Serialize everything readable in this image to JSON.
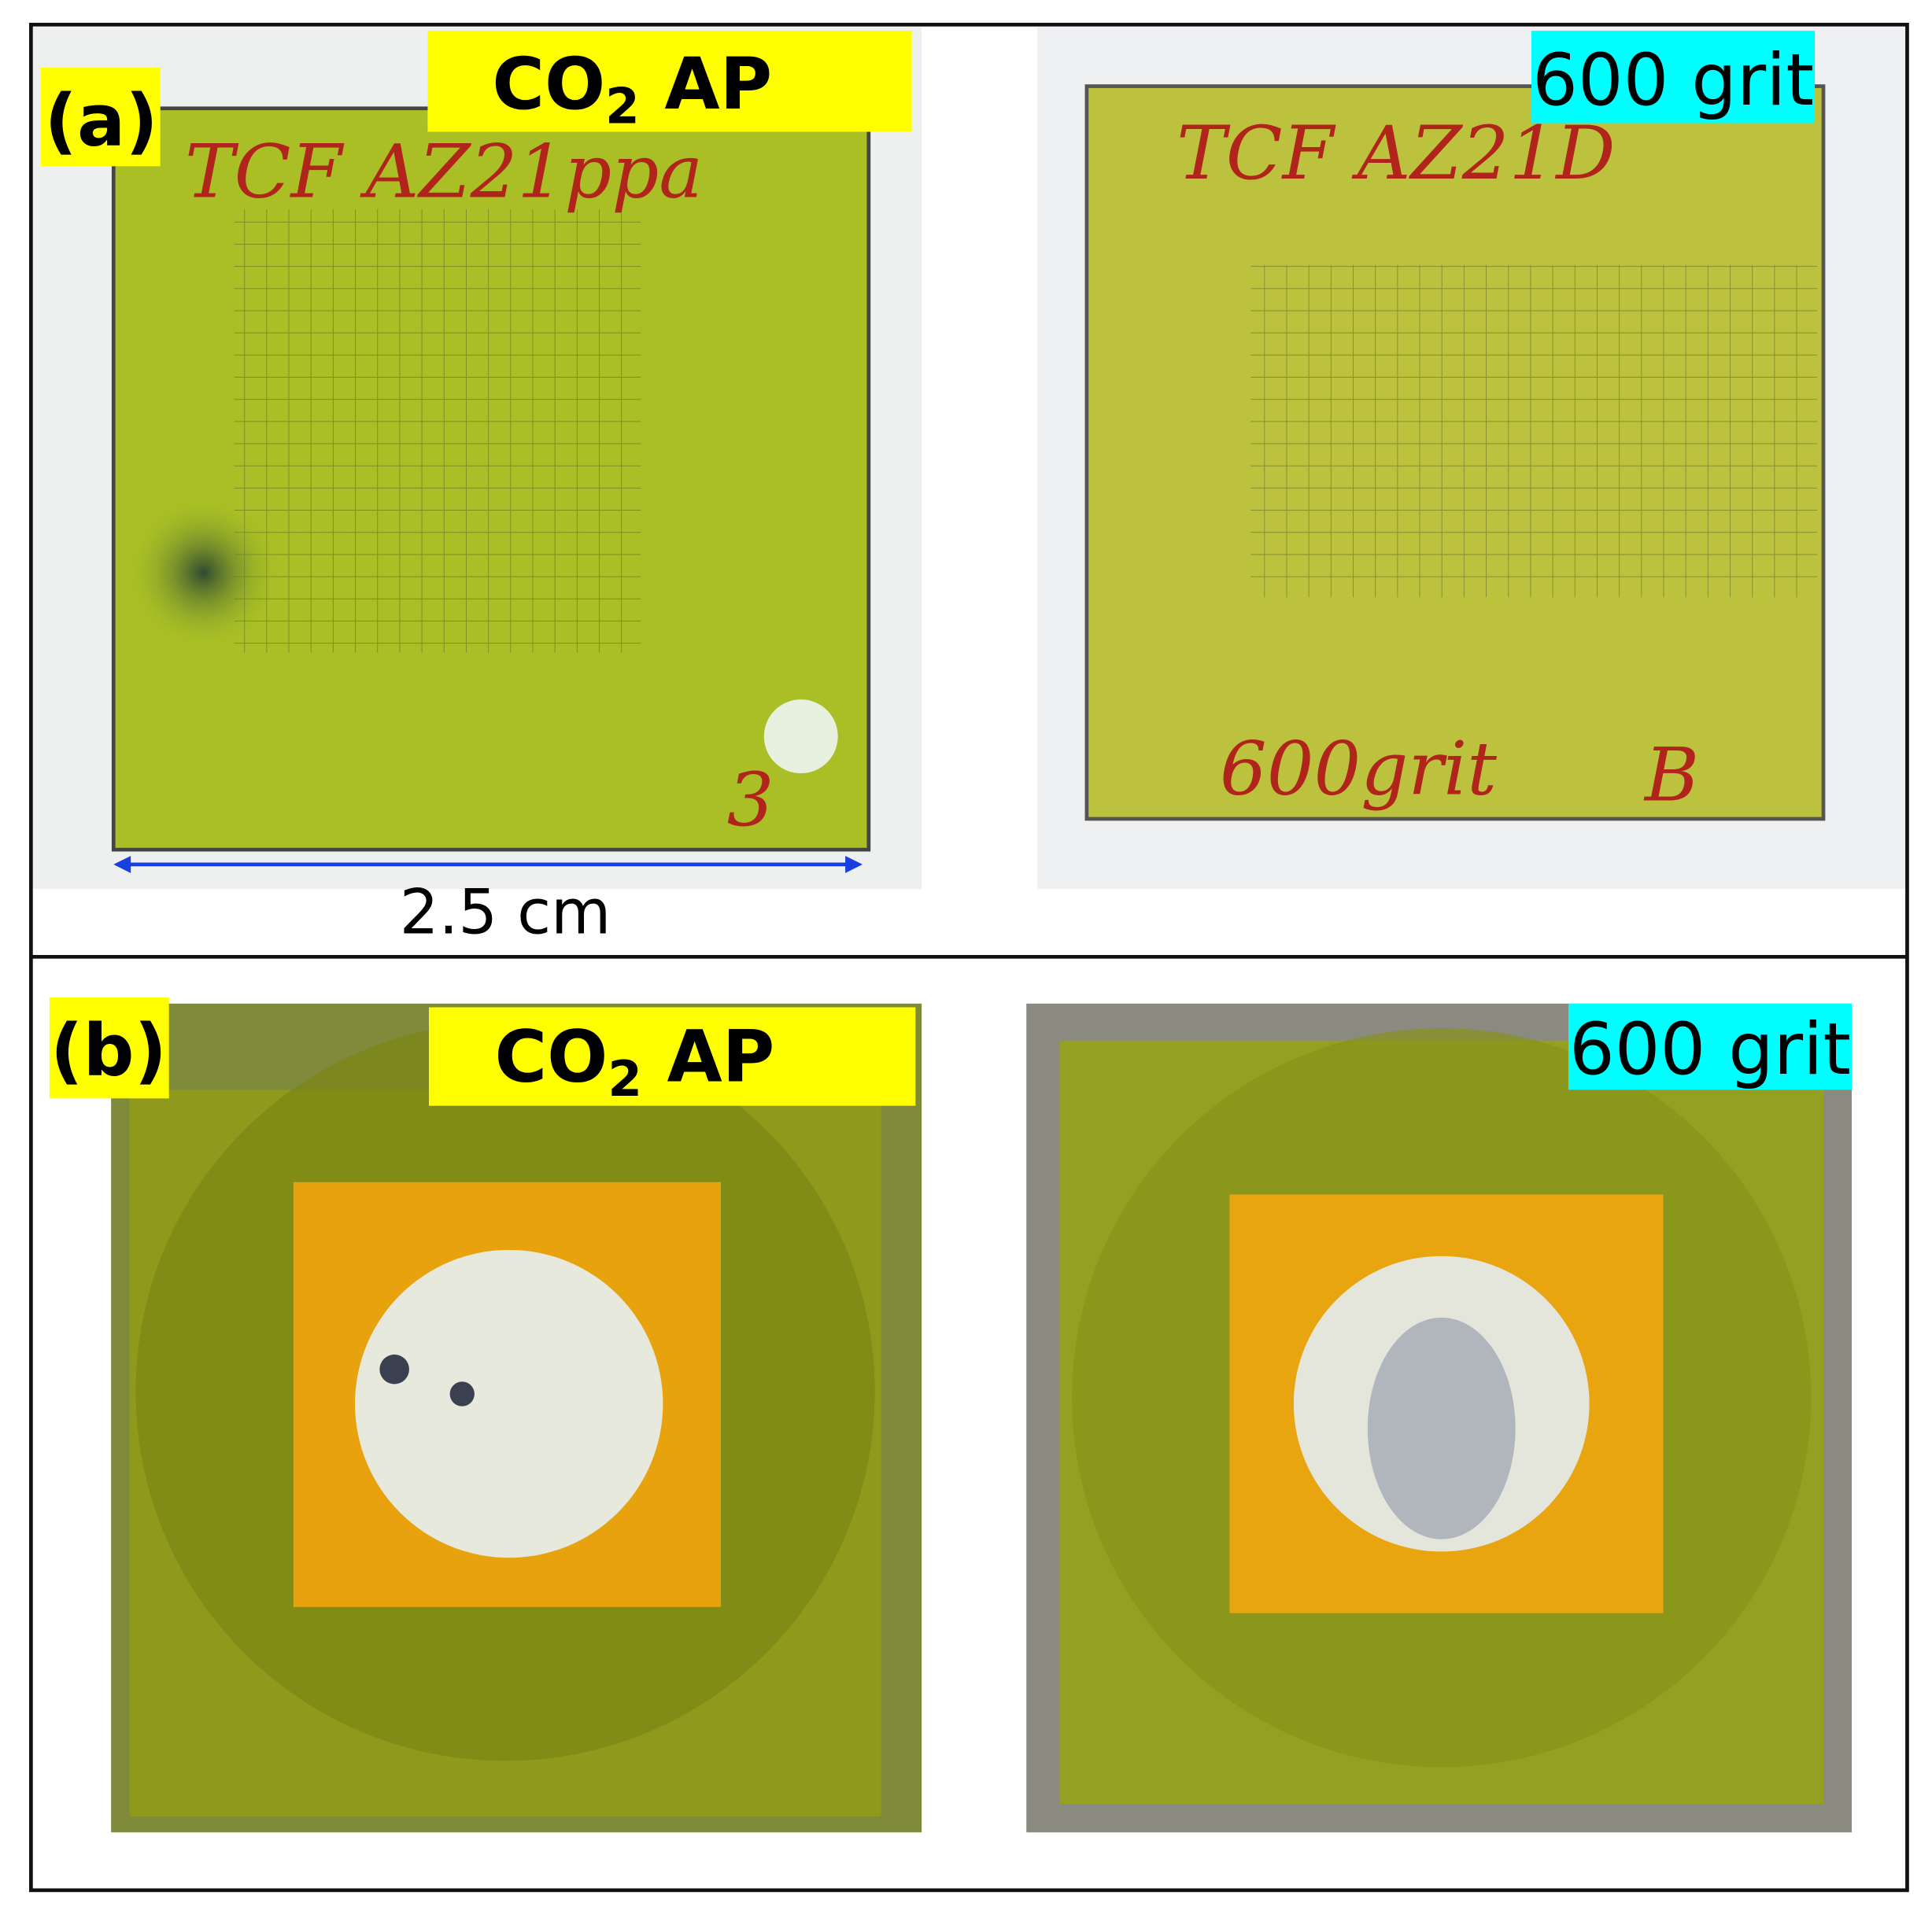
{
  "panels": [
    {
      "label": "(a)",
      "scale_bar": "2.5 cm",
      "photos": [
        {
          "tag": {
            "main": "CO",
            "subscript": "2",
            "suffix": " AP"
          },
          "handwriting": [
            "TCF AZ21ppa",
            "3"
          ]
        },
        {
          "tag": "600 grit",
          "handwriting": [
            "TCF AZ21D",
            "600grit",
            "B"
          ]
        }
      ]
    },
    {
      "label": "(b)",
      "photos": [
        {
          "tag": {
            "main": "CO",
            "subscript": "2",
            "suffix": " AP"
          }
        },
        {
          "tag": "600 grit"
        }
      ]
    }
  ]
}
